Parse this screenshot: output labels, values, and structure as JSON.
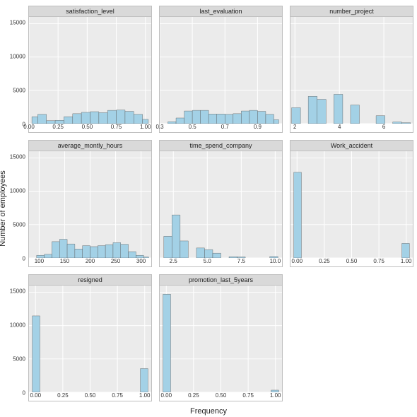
{
  "figure": {
    "background_color": "#ffffff",
    "panel_bg": "#ebebeb",
    "strip_bg": "#d9d9d9",
    "grid_color": "#ffffff",
    "bar_fill": "#a3d1e6",
    "bar_stroke": "#555555",
    "ylabel": "Number of employees",
    "xlabel": "Frequency",
    "ylim": [
      0,
      16000
    ],
    "yticks": [
      0,
      5000,
      10000,
      15000
    ],
    "ytick_labels": [
      "0",
      "5000",
      "10000",
      "15000"
    ],
    "rows": 3,
    "cols": 3
  },
  "panels": [
    {
      "title": "satisfaction_level",
      "type": "histogram",
      "xlim": [
        0.0,
        1.05
      ],
      "xticks": [
        0.0,
        0.25,
        0.5,
        0.75,
        1.0
      ],
      "xtick_labels": [
        "0.00",
        "0.25",
        "0.50",
        "0.75",
        "1.00"
      ],
      "bars": [
        {
          "x0": 0.025,
          "x1": 0.075,
          "y": 1050
        },
        {
          "x0": 0.075,
          "x1": 0.15,
          "y": 1400
        },
        {
          "x0": 0.15,
          "x1": 0.225,
          "y": 450
        },
        {
          "x0": 0.225,
          "x1": 0.3,
          "y": 500
        },
        {
          "x0": 0.3,
          "x1": 0.375,
          "y": 1050
        },
        {
          "x0": 0.375,
          "x1": 0.45,
          "y": 1500
        },
        {
          "x0": 0.45,
          "x1": 0.525,
          "y": 1700
        },
        {
          "x0": 0.525,
          "x1": 0.6,
          "y": 1800
        },
        {
          "x0": 0.6,
          "x1": 0.675,
          "y": 1650
        },
        {
          "x0": 0.675,
          "x1": 0.75,
          "y": 2000
        },
        {
          "x0": 0.75,
          "x1": 0.825,
          "y": 2050
        },
        {
          "x0": 0.825,
          "x1": 0.9,
          "y": 1850
        },
        {
          "x0": 0.9,
          "x1": 0.975,
          "y": 1400
        },
        {
          "x0": 0.975,
          "x1": 1.025,
          "y": 650
        }
      ]
    },
    {
      "title": "last_evaluation",
      "type": "histogram",
      "xlim": [
        0.3,
        1.05
      ],
      "xticks": [
        0.3,
        0.5,
        0.7,
        0.9
      ],
      "xtick_labels": [
        "0.3",
        "0.5",
        "0.7",
        "0.9"
      ],
      "bars": [
        {
          "x0": 0.35,
          "x1": 0.4,
          "y": 300
        },
        {
          "x0": 0.4,
          "x1": 0.45,
          "y": 850
        },
        {
          "x0": 0.45,
          "x1": 0.5,
          "y": 1900
        },
        {
          "x0": 0.5,
          "x1": 0.55,
          "y": 2000
        },
        {
          "x0": 0.55,
          "x1": 0.6,
          "y": 2000
        },
        {
          "x0": 0.6,
          "x1": 0.65,
          "y": 1450
        },
        {
          "x0": 0.65,
          "x1": 0.7,
          "y": 1450
        },
        {
          "x0": 0.7,
          "x1": 0.75,
          "y": 1400
        },
        {
          "x0": 0.75,
          "x1": 0.8,
          "y": 1500
        },
        {
          "x0": 0.8,
          "x1": 0.85,
          "y": 1900
        },
        {
          "x0": 0.85,
          "x1": 0.9,
          "y": 2000
        },
        {
          "x0": 0.9,
          "x1": 0.95,
          "y": 1850
        },
        {
          "x0": 0.95,
          "x1": 1.0,
          "y": 1400
        },
        {
          "x0": 1.0,
          "x1": 1.03,
          "y": 600
        }
      ]
    },
    {
      "title": "number_project",
      "type": "histogram",
      "xlim": [
        1.8,
        7.3
      ],
      "xticks": [
        2,
        4,
        6
      ],
      "xtick_labels": [
        "2",
        "4",
        "6"
      ],
      "bars": [
        {
          "x0": 1.85,
          "x1": 2.25,
          "y": 2400
        },
        {
          "x0": 2.6,
          "x1": 3.0,
          "y": 4100
        },
        {
          "x0": 3.0,
          "x1": 3.4,
          "y": 3650
        },
        {
          "x0": 3.75,
          "x1": 4.15,
          "y": 4400
        },
        {
          "x0": 4.5,
          "x1": 4.9,
          "y": 2800
        },
        {
          "x0": 5.25,
          "x1": 5.65,
          "y": 0
        },
        {
          "x0": 5.65,
          "x1": 6.05,
          "y": 1200
        },
        {
          "x0": 6.4,
          "x1": 6.8,
          "y": 260
        },
        {
          "x0": 6.8,
          "x1": 7.2,
          "y": 150
        }
      ]
    },
    {
      "title": "average_montly_hours",
      "type": "histogram",
      "xlim": [
        80,
        320
      ],
      "xticks": [
        100,
        150,
        200,
        250,
        300
      ],
      "xtick_labels": [
        "100",
        "150",
        "200",
        "250",
        "300"
      ],
      "bars": [
        {
          "x0": 95,
          "x1": 110,
          "y": 400
        },
        {
          "x0": 110,
          "x1": 125,
          "y": 550
        },
        {
          "x0": 125,
          "x1": 140,
          "y": 2450
        },
        {
          "x0": 140,
          "x1": 155,
          "y": 2800
        },
        {
          "x0": 155,
          "x1": 170,
          "y": 2100
        },
        {
          "x0": 170,
          "x1": 185,
          "y": 1350
        },
        {
          "x0": 185,
          "x1": 200,
          "y": 1850
        },
        {
          "x0": 200,
          "x1": 215,
          "y": 1700
        },
        {
          "x0": 215,
          "x1": 230,
          "y": 1850
        },
        {
          "x0": 230,
          "x1": 245,
          "y": 2000
        },
        {
          "x0": 245,
          "x1": 260,
          "y": 2300
        },
        {
          "x0": 260,
          "x1": 275,
          "y": 2050
        },
        {
          "x0": 275,
          "x1": 290,
          "y": 950
        },
        {
          "x0": 290,
          "x1": 305,
          "y": 400
        },
        {
          "x0": 305,
          "x1": 315,
          "y": 150
        }
      ]
    },
    {
      "title": "time_spend_company",
      "type": "histogram",
      "xlim": [
        1.5,
        10.5
      ],
      "xticks": [
        2.5,
        5.0,
        7.5,
        10.0
      ],
      "xtick_labels": [
        "2.5",
        "5.0",
        "7.5",
        "10.0"
      ],
      "bars": [
        {
          "x0": 1.8,
          "x1": 2.4,
          "y": 3250
        },
        {
          "x0": 2.4,
          "x1": 3.0,
          "y": 6450
        },
        {
          "x0": 3.0,
          "x1": 3.6,
          "y": 2550
        },
        {
          "x0": 4.2,
          "x1": 4.8,
          "y": 1500
        },
        {
          "x0": 4.8,
          "x1": 5.4,
          "y": 1250
        },
        {
          "x0": 5.4,
          "x1": 6.0,
          "y": 720
        },
        {
          "x0": 6.6,
          "x1": 7.2,
          "y": 190
        },
        {
          "x0": 7.2,
          "x1": 7.8,
          "y": 160
        },
        {
          "x0": 9.6,
          "x1": 10.2,
          "y": 220
        }
      ]
    },
    {
      "title": "Work_accident",
      "type": "histogram",
      "xlim": [
        -0.06,
        1.06
      ],
      "xticks": [
        0.0,
        0.25,
        0.5,
        0.75,
        1.0
      ],
      "xtick_labels": [
        "0.00",
        "0.25",
        "0.50",
        "0.75",
        "1.00"
      ],
      "bars": [
        {
          "x0": -0.03,
          "x1": 0.04,
          "y": 12850
        },
        {
          "x0": 0.96,
          "x1": 1.03,
          "y": 2180
        }
      ]
    },
    {
      "title": "resigned",
      "type": "histogram",
      "xlim": [
        -0.06,
        1.06
      ],
      "xticks": [
        0.0,
        0.25,
        0.5,
        0.75,
        1.0
      ],
      "xtick_labels": [
        "0.00",
        "0.25",
        "0.50",
        "0.75",
        "1.00"
      ],
      "bars": [
        {
          "x0": -0.03,
          "x1": 0.04,
          "y": 11450
        },
        {
          "x0": 0.96,
          "x1": 1.03,
          "y": 3550
        }
      ]
    },
    {
      "title": "promotion_last_5years",
      "type": "histogram",
      "xlim": [
        -0.06,
        1.06
      ],
      "xticks": [
        0.0,
        0.25,
        0.5,
        0.75,
        1.0
      ],
      "xtick_labels": [
        "0.00",
        "0.25",
        "0.50",
        "0.75",
        "1.00"
      ],
      "bars": [
        {
          "x0": -0.03,
          "x1": 0.04,
          "y": 14700
        },
        {
          "x0": 0.96,
          "x1": 1.03,
          "y": 320
        }
      ]
    }
  ]
}
